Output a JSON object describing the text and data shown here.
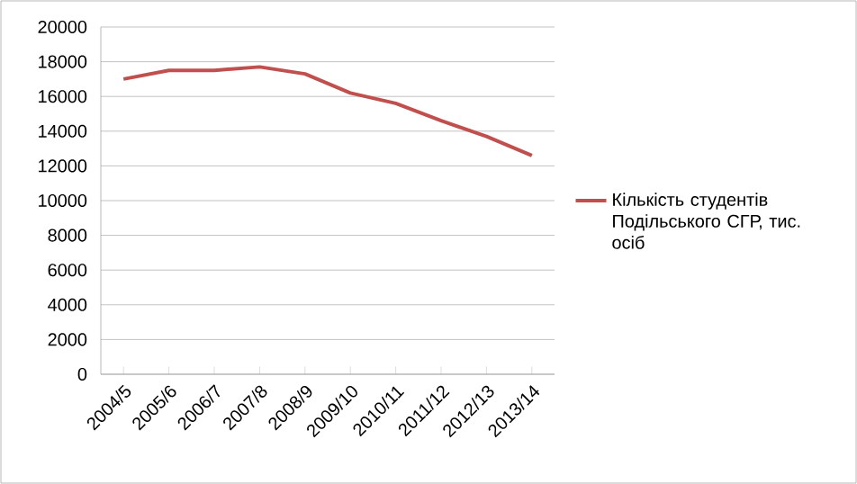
{
  "chart_data": {
    "type": "line",
    "categories": [
      "2004/5",
      "2005/6",
      "2006/7",
      "2007/8",
      "2008/9",
      "2009/10",
      "2010/11",
      "2011/12",
      "2012/13",
      "2013/14"
    ],
    "series": [
      {
        "name": "Кількість студентів Подільського СГР, тис. осіб",
        "color": "#c0504d",
        "values": [
          17000,
          17500,
          17500,
          17700,
          17300,
          16200,
          15600,
          14600,
          13700,
          12600
        ]
      }
    ],
    "ylim": [
      0,
      20000
    ],
    "yticks": [
      0,
      2000,
      4000,
      6000,
      8000,
      10000,
      12000,
      14000,
      16000,
      18000,
      20000
    ],
    "grid": "y",
    "legend": "right",
    "marker": "none",
    "line_style": "solid"
  }
}
